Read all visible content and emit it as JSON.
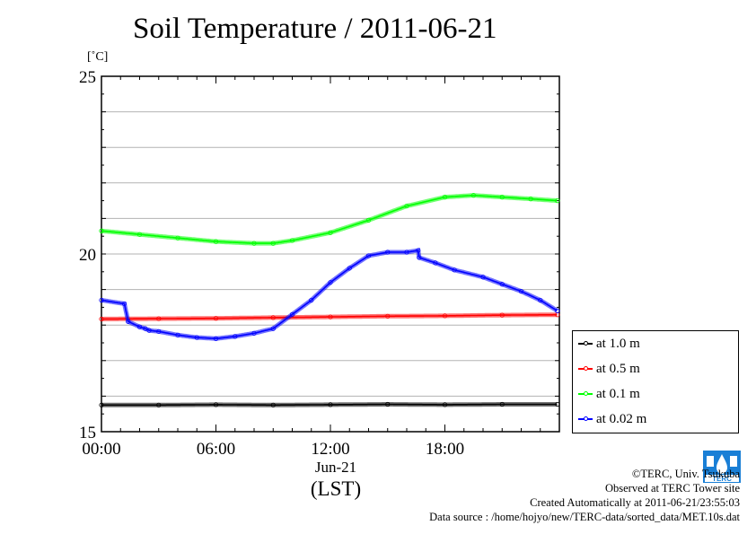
{
  "title": "Soil Temperature / 2011-06-21",
  "unit_label": "[˚C]",
  "date_label": "Jun-21",
  "time_zone_label": "(LST)",
  "legend": {
    "items": [
      {
        "label": "at 1.0 m",
        "color": "#000000"
      },
      {
        "label": "at 0.5 m",
        "color": "#ff0000"
      },
      {
        "label": "at 0.1 m",
        "color": "#00ff00"
      },
      {
        "label": "at 0.02 m",
        "color": "#0000ff"
      }
    ]
  },
  "credits": {
    "copyright": "©TERC, Univ. Tsukuba",
    "observed": "Observed at TERC Tower site",
    "created": "Created Automatically at 2011-06-21/23:55:03",
    "source": "Data source : /home/hojyo/new/TERC-data/sorted_data/MET.10s.dat"
  },
  "logo_text": "TERC",
  "chart_data": {
    "type": "line",
    "title": "Soil Temperature / 2011-06-21",
    "xlabel": "Jun-21 (LST)",
    "ylabel": "[˚C]",
    "xlim": [
      0,
      24
    ],
    "ylim": [
      15,
      25
    ],
    "xticks": [
      0,
      6,
      12,
      18
    ],
    "xtick_labels": [
      "00:00",
      "06:00",
      "12:00",
      "18:00"
    ],
    "yticks": [
      15,
      20,
      25
    ],
    "ytick_labels": [
      "15",
      "20",
      "25"
    ],
    "grid": true,
    "legend_position": "right-bottom",
    "series": [
      {
        "name": "at 1.0 m",
        "color": "#000000",
        "x": [
          0,
          3,
          6,
          9,
          12,
          15,
          18,
          21,
          23.9
        ],
        "y": [
          15.75,
          15.75,
          15.76,
          15.75,
          15.76,
          15.77,
          15.76,
          15.77,
          15.77
        ]
      },
      {
        "name": "at 0.5 m",
        "color": "#ff0000",
        "x": [
          0,
          3,
          6,
          9,
          12,
          15,
          18,
          21,
          23.9
        ],
        "y": [
          18.17,
          18.18,
          18.19,
          18.21,
          18.23,
          18.25,
          18.26,
          18.28,
          18.29
        ]
      },
      {
        "name": "at 0.1 m",
        "color": "#00ff00",
        "x": [
          0,
          2,
          4,
          6,
          8,
          9,
          10,
          12,
          14,
          16,
          18,
          19.5,
          21,
          22.5,
          23.9
        ],
        "y": [
          20.65,
          20.55,
          20.45,
          20.35,
          20.3,
          20.3,
          20.38,
          20.6,
          20.95,
          21.35,
          21.6,
          21.65,
          21.6,
          21.55,
          21.5
        ]
      },
      {
        "name": "at 0.02 m",
        "color": "#0000ff",
        "x": [
          0,
          1.2,
          1.4,
          2.0,
          2.3,
          2.5,
          3,
          4,
          5,
          6,
          7,
          8,
          9,
          10,
          11,
          12,
          13,
          14,
          15,
          16,
          16.6,
          16.65,
          17.5,
          18.5,
          20,
          21,
          22,
          23,
          23.9
        ],
        "y": [
          18.7,
          18.6,
          18.1,
          17.95,
          17.9,
          17.85,
          17.82,
          17.72,
          17.65,
          17.62,
          17.68,
          17.77,
          17.9,
          18.3,
          18.7,
          19.2,
          19.6,
          19.95,
          20.05,
          20.05,
          20.1,
          19.9,
          19.75,
          19.55,
          19.35,
          19.15,
          18.95,
          18.7,
          18.4
        ]
      }
    ]
  }
}
